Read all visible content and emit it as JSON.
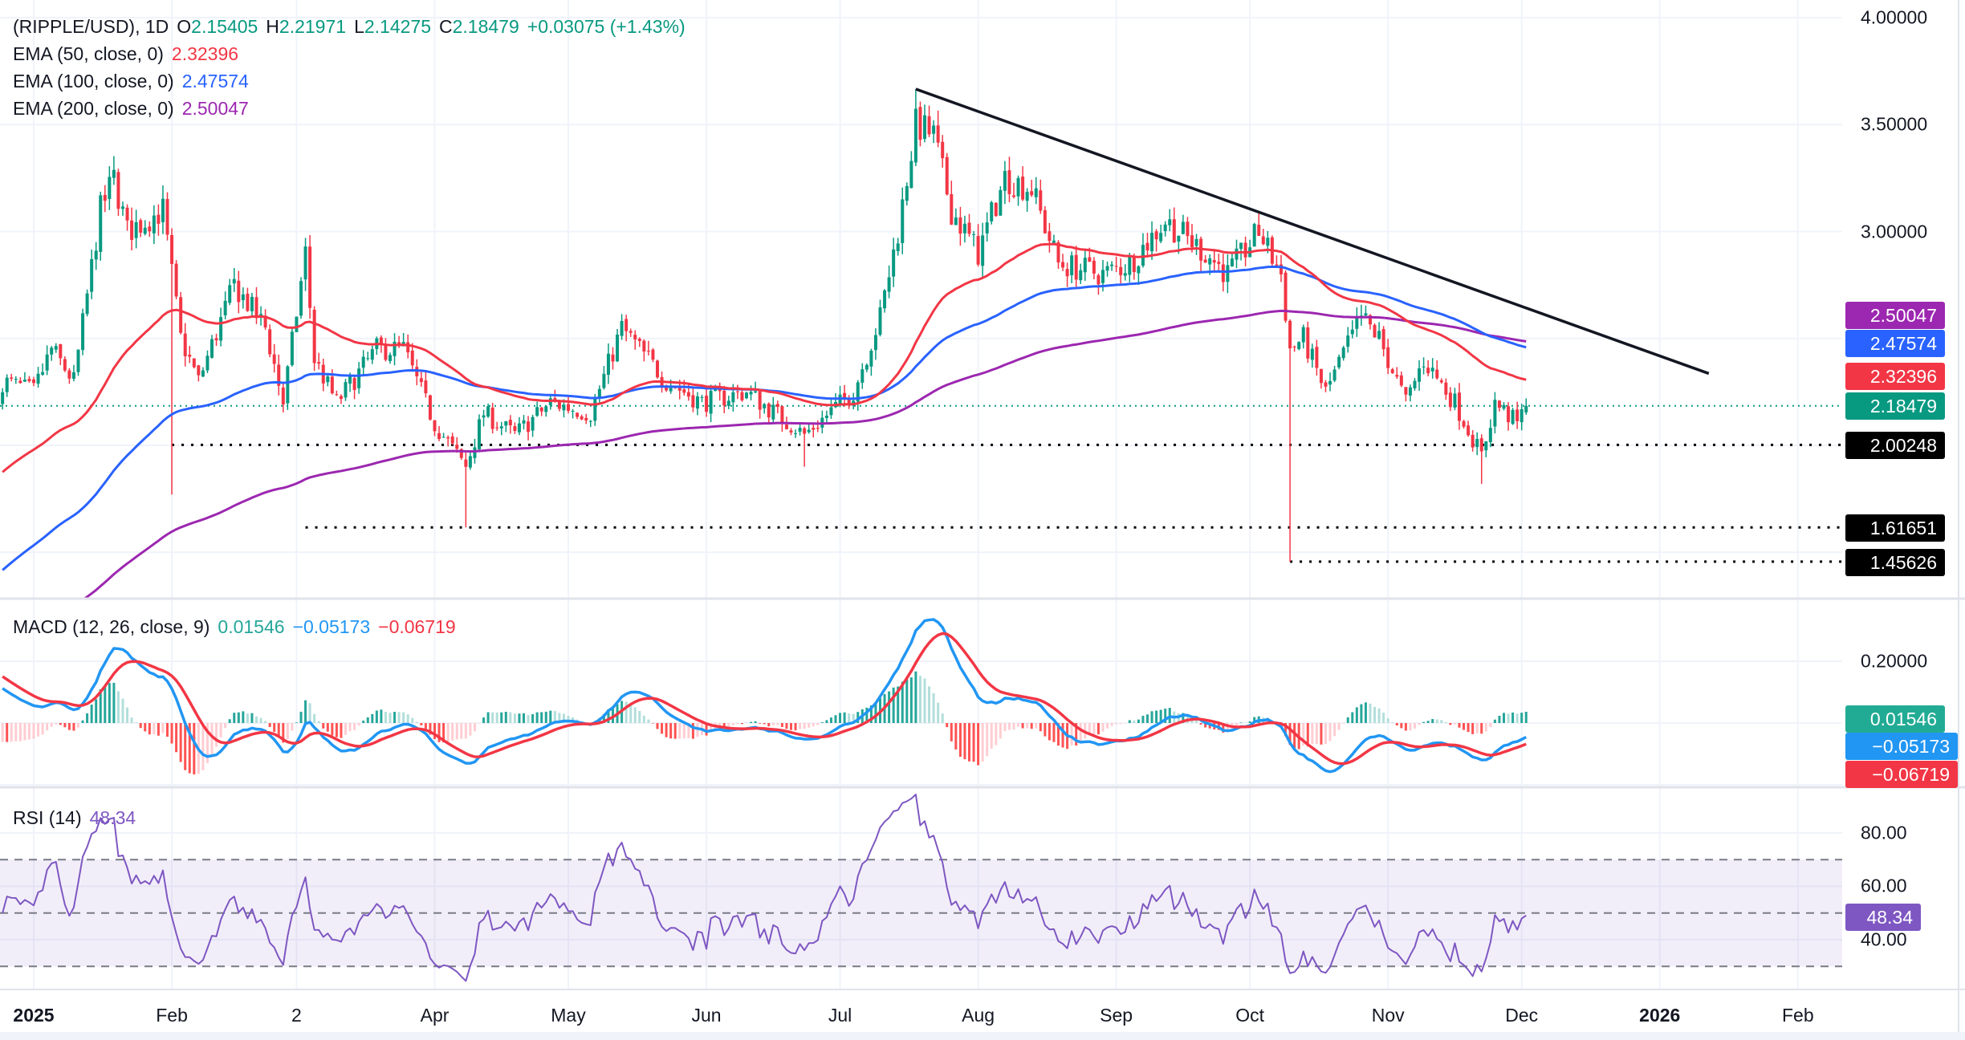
{
  "header": {
    "symbol": "(RIPPLE/USD), 1D",
    "o_label": "O",
    "open": "2.15405",
    "h_label": "H",
    "high": "2.21971",
    "l_label": "L",
    "low": "2.14275",
    "c_label": "C",
    "close": "2.18479",
    "change": "+0.03075 (+1.43%)"
  },
  "emas": [
    {
      "label": "EMA (50, close, 0)",
      "value": "2.32396",
      "color": "#F23645"
    },
    {
      "label": "EMA (100, close, 0)",
      "value": "2.47574",
      "color": "#2962FF"
    },
    {
      "label": "EMA (200, close, 0)",
      "value": "2.50047",
      "color": "#9C27B0"
    }
  ],
  "macd": {
    "label": "MACD (12, 26, close, 9)",
    "hist": "0.01546",
    "macd": "−0.05173",
    "signal": "−0.06719"
  },
  "rsi": {
    "label": "RSI (14)",
    "value": "48.34"
  },
  "price_ticks": [
    "4.00000",
    "3.50000",
    "3.00000"
  ],
  "macd_ticks": [
    "0.20000"
  ],
  "rsi_ticks": [
    "80.00",
    "60.00",
    "40.00"
  ],
  "badges": {
    "ema200": "2.50047",
    "ema100": "2.47574",
    "ema50": "2.32396",
    "last": "2.18479",
    "s1": "2.00248",
    "s2": "1.61651",
    "s3": "1.45626",
    "hist": "0.01546",
    "macd": "−0.05173",
    "signal": "−0.06719",
    "rsi": "48.34"
  },
  "time_labels": [
    "2025",
    "Feb",
    "2",
    "Apr",
    "May",
    "Jun",
    "Jul",
    "Aug",
    "Sep",
    "Oct",
    "Nov",
    "Dec",
    "2026",
    "Feb"
  ],
  "colors": {
    "up": "#089981",
    "down": "#F23645",
    "ema50": "#F23645",
    "ema100": "#2962FF",
    "ema200": "#9C27B0",
    "macd": "#2196F3",
    "signal": "#F23645",
    "rsi": "#7E57C2"
  },
  "chart_data": {
    "type": "candlestick",
    "title": "RIPPLE/USD 1D",
    "x_unit": "day of 2025 (0 = Jan 1)",
    "price_path": [
      [
        -7,
        2.3
      ],
      [
        0,
        2.25
      ],
      [
        4,
        2.45
      ],
      [
        9,
        2.3
      ],
      [
        15,
        3.1
      ],
      [
        18,
        3.25
      ],
      [
        21,
        3.0
      ],
      [
        29,
        3.1
      ],
      [
        33,
        2.5
      ],
      [
        37,
        2.3
      ],
      [
        45,
        2.75
      ],
      [
        52,
        2.55
      ],
      [
        56,
        2.2
      ],
      [
        61,
        2.9
      ],
      [
        63,
        2.4
      ],
      [
        68,
        2.2
      ],
      [
        77,
        2.45
      ],
      [
        83,
        2.45
      ],
      [
        90,
        2.1
      ],
      [
        97,
        1.9
      ],
      [
        101,
        2.15
      ],
      [
        108,
        2.05
      ],
      [
        116,
        2.2
      ],
      [
        125,
        2.15
      ],
      [
        132,
        2.55
      ],
      [
        142,
        2.3
      ],
      [
        150,
        2.2
      ],
      [
        160,
        2.25
      ],
      [
        173,
        2.05
      ],
      [
        184,
        2.25
      ],
      [
        190,
        2.6
      ],
      [
        194,
        3.0
      ],
      [
        198,
        3.5
      ],
      [
        202,
        3.45
      ],
      [
        206,
        3.1
      ],
      [
        212,
        2.9
      ],
      [
        218,
        3.25
      ],
      [
        224,
        3.2
      ],
      [
        230,
        2.85
      ],
      [
        240,
        2.8
      ],
      [
        246,
        2.85
      ],
      [
        254,
        3.05
      ],
      [
        263,
        2.9
      ],
      [
        268,
        2.8
      ],
      [
        275,
        3.0
      ],
      [
        280,
        2.8
      ],
      [
        282,
        2.45
      ],
      [
        285,
        2.5
      ],
      [
        290,
        2.25
      ],
      [
        298,
        2.6
      ],
      [
        302,
        2.5
      ],
      [
        308,
        2.2
      ],
      [
        312,
        2.4
      ],
      [
        319,
        2.2
      ],
      [
        325,
        1.95
      ],
      [
        328,
        2.2
      ],
      [
        333,
        2.1
      ],
      [
        335,
        2.18479
      ]
    ],
    "wicks": [
      {
        "day": 31,
        "low": 1.77
      },
      {
        "day": 97,
        "low": 1.61651
      },
      {
        "day": 173,
        "low": 1.9
      },
      {
        "day": 198,
        "high": 3.666
      },
      {
        "day": 282,
        "low": 1.45626
      },
      {
        "day": 325,
        "low": 1.82
      }
    ],
    "last_candle": {
      "open": 2.15405,
      "high": 2.21971,
      "low": 2.14275,
      "close": 2.18479
    },
    "ema_seeds": {
      "ema50": 1.86,
      "ema100": 1.4,
      "ema200": 1.05,
      "ema12": 2.35,
      "ema26": 2.22,
      "signal": 0.16
    },
    "levels": [
      {
        "price": 2.00248,
        "from_day": 31
      },
      {
        "price": 1.61651,
        "from_day": 61
      },
      {
        "price": 1.45626,
        "from_day": 282
      }
    ],
    "trendline": [
      [
        198,
        3.666
      ],
      [
        376,
        2.336
      ]
    ],
    "price_range": [
      1.3,
      4.0
    ],
    "rsi_bands": [
      30,
      70
    ],
    "macd_range": [
      -0.25,
      0.3
    ]
  }
}
